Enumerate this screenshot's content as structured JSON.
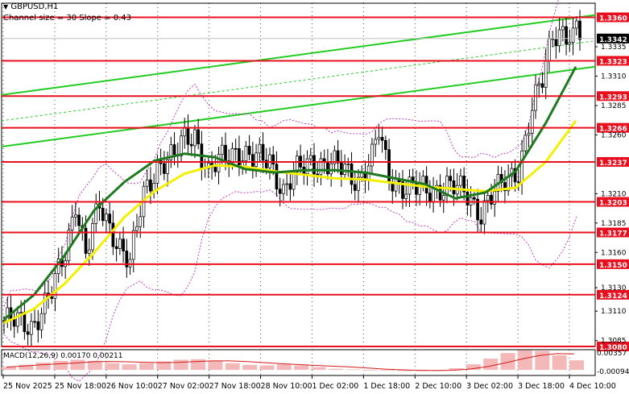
{
  "header": {
    "symbol": "GBPUSD,H1",
    "channel_info": "Channel size = 30 Slope = 0.43"
  },
  "macd": {
    "label": "MACD(12,26,9) 0.00170 0.00211",
    "scale_top": "0.00357",
    "scale_bottom": "-0.00094"
  },
  "colors": {
    "level_line": "#e8101e",
    "channel": "#22cc22",
    "ma_slow": "#f4f000",
    "ma_fast": "#1e7a1e",
    "bollinger": "#c03cc0",
    "candle": "#000000",
    "macd_hist": "#f5b8b8",
    "macd_signal": "#d11a1a",
    "bid_line": "#c0c0c0",
    "label_bg": "#e8101e"
  },
  "chart_data": {
    "type": "candlestick",
    "symbol": "GBPUSD",
    "timeframe": "H1",
    "ylim": [
      1.308,
      1.3372
    ],
    "y_ticks": [
      "1.3335",
      "1.3310",
      "1.3285",
      "1.3260",
      "1.3210",
      "1.3185",
      "1.3160",
      "1.3130",
      "1.3110",
      "1.3085"
    ],
    "levels": [
      "1.3360",
      "1.3323",
      "1.3293",
      "1.3266",
      "1.3237",
      "1.3203",
      "1.3177",
      "1.3150",
      "1.3124",
      "1.3080"
    ],
    "current_price": "1.3342",
    "x_labels": [
      "25 Nov 2025",
      "25 Nov 18:00",
      "26 Nov 10:00",
      "27 Nov 02:00",
      "27 Nov 18:00",
      "28 Nov 10:00",
      "1 Dec 02:00",
      "1 Dec 18:00",
      "2 Dec 10:00",
      "3 Dec 02:00",
      "3 Dec 18:00",
      "4 Dec 10:00"
    ],
    "grid": "vertical dotted",
    "series": [
      {
        "name": "MA slow",
        "values": [
          1.31,
          1.3112,
          1.3133,
          1.316,
          1.319,
          1.3212,
          1.3227,
          1.3234,
          1.3233,
          1.3229,
          1.3226,
          1.3223,
          1.3222,
          1.3219,
          1.3216,
          1.3214,
          1.3212,
          1.3215,
          1.3237,
          1.3272
        ]
      },
      {
        "name": "MA fast",
        "values": [
          1.3103,
          1.3124,
          1.3157,
          1.3196,
          1.322,
          1.3238,
          1.3244,
          1.3241,
          1.3231,
          1.3228,
          1.323,
          1.323,
          1.3228,
          1.3223,
          1.3218,
          1.3206,
          1.3211,
          1.3229,
          1.327,
          1.3318
        ]
      }
    ],
    "macd_hist": [
      0.0005,
      0.0009,
      0.0013,
      0.0016,
      0.0018,
      0.0016,
      0.0012,
      0.001,
      0.0012,
      0.0015,
      0.0018,
      0.0019,
      0.0016,
      0.0012,
      0.0009,
      0.0008,
      0.001,
      0.0008,
      0.0005,
      0.0002,
      0.0001,
      0.0,
      -0.0001,
      -0.0002,
      -0.0002,
      -0.0001,
      0.0003,
      0.001,
      0.002,
      0.003,
      0.0035,
      0.0034,
      0.0026,
      0.0017
    ]
  }
}
